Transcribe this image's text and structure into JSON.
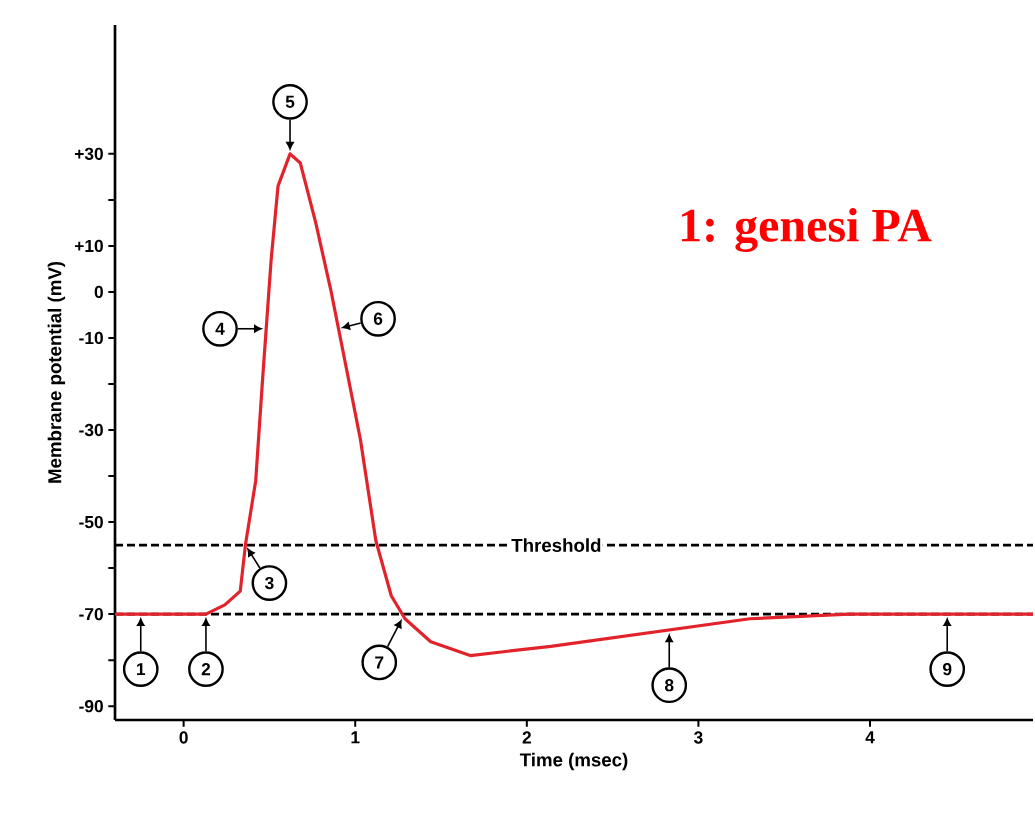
{
  "chart_data": {
    "type": "line",
    "xlabel": "Time (msec)",
    "ylabel": "Membrane potential (mV)",
    "series": [
      {
        "color": "#e3232c",
        "marker": "none",
        "line_style": "solid",
        "x": [
          -0.4,
          0.13,
          0.24,
          0.33,
          0.36,
          0.42,
          0.46,
          0.51,
          0.55,
          0.62,
          0.68,
          0.77,
          0.86,
          0.94,
          1.03,
          1.12,
          1.21,
          1.29,
          1.44,
          1.67,
          2.14,
          2.72,
          3.3,
          3.88,
          4.95
        ],
        "values": [
          -70,
          -70,
          -68,
          -65,
          -55,
          -41,
          -19,
          7,
          23,
          30,
          28,
          15,
          0,
          -15,
          -32,
          -54,
          -66,
          -71,
          -76,
          -79,
          -77,
          -74,
          -71,
          -70,
          -70
        ]
      }
    ],
    "xlim": [
      -0.4,
      4.95
    ],
    "ylim": [
      -93,
      58
    ],
    "xticks": [
      0,
      1,
      2,
      3,
      4
    ],
    "yticks": [
      {
        "value": 30,
        "label": "+30"
      },
      {
        "value": 20,
        "label": null
      },
      {
        "value": 10,
        "label": "+10"
      },
      0,
      -10,
      {
        "value": -20,
        "label": null
      },
      -30,
      {
        "value": -40,
        "label": null
      },
      -50,
      {
        "value": -60,
        "label": null
      },
      -70,
      {
        "value": -80,
        "label": null
      },
      -90
    ],
    "ref_lines": [
      {
        "axis": "y",
        "value": -55,
        "label": "Threshold",
        "color": "#000000",
        "line_style": "dashed"
      },
      {
        "axis": "y",
        "value": -70,
        "label": null,
        "color": "#000000",
        "line_style": "dashed"
      }
    ],
    "annotations": [
      {
        "text": "1",
        "x": -0.25,
        "y": -70
      },
      {
        "text": "2",
        "x": 0.13,
        "y": -70
      },
      {
        "text": "3",
        "x": 0.36,
        "y": -55
      },
      {
        "text": "4",
        "x": 0.48,
        "y": -8
      },
      {
        "text": "5",
        "x": 0.62,
        "y": 30
      },
      {
        "text": "6",
        "x": 0.9,
        "y": -8
      },
      {
        "text": "7",
        "x": 1.28,
        "y": -70.5
      },
      {
        "text": "8",
        "x": 2.83,
        "y": -73.5
      },
      {
        "text": "9",
        "x": 4.45,
        "y": -70
      },
      "1: genesi PA"
    ]
  }
}
